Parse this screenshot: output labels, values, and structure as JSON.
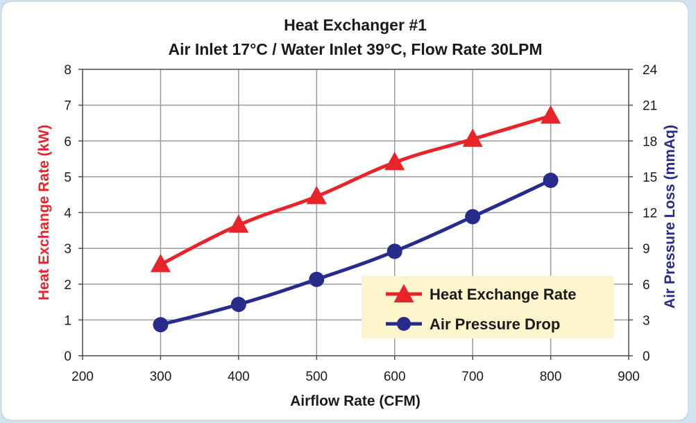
{
  "chart_data": {
    "type": "line",
    "title": "Heat Exchanger #1",
    "subtitle": "Air Inlet 17°C / Water Inlet 39°C, Flow Rate 30LPM",
    "xlabel": "Airflow Rate (CFM)",
    "ylabel_left": "Heat Exchange Rate (kW)",
    "ylabel_right": "Air Pressure Loss (mmAq)",
    "xlim": [
      200,
      900
    ],
    "ylim_left": [
      0,
      8
    ],
    "ylim_right": [
      0,
      24
    ],
    "x_ticks": [
      "200",
      "300",
      "400",
      "500",
      "600",
      "700",
      "800",
      "900"
    ],
    "y_left_ticks": [
      "0",
      "1",
      "2",
      "3",
      "4",
      "5",
      "6",
      "7",
      "8"
    ],
    "y_right_ticks": [
      "0",
      "3",
      "6",
      "9",
      "12",
      "15",
      "18",
      "21",
      "24"
    ],
    "grid": true,
    "legend_position": "bottom-right",
    "series": [
      {
        "name": "Heat Exchange Rate",
        "axis": "left",
        "marker": "triangle",
        "color": "#e8232a",
        "x": [
          300,
          400,
          500,
          600,
          700,
          800
        ],
        "y": [
          2.55,
          3.65,
          4.45,
          5.4,
          6.05,
          6.7
        ]
      },
      {
        "name": "Air Pressure Drop",
        "axis": "right",
        "marker": "circle",
        "color": "#262b8c",
        "x": [
          300,
          400,
          500,
          600,
          700,
          800
        ],
        "y": [
          2.6,
          4.3,
          6.4,
          8.75,
          11.65,
          14.7
        ]
      }
    ],
    "legend_background": "#fdf5cc",
    "left_axis_color": "#e8232a",
    "right_axis_color": "#262b8c"
  }
}
